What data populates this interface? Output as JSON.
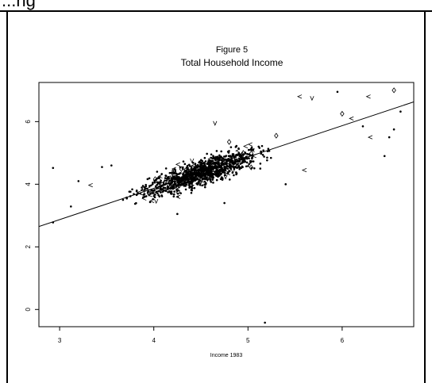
{
  "header_text": "...ng",
  "chart_data": {
    "type": "scatter",
    "title": "Figure 5",
    "subtitle": "Total Household Income",
    "xlabel": "Income 1983",
    "ylabel": "",
    "xlim": [
      2.78,
      6.76
    ],
    "ylim": [
      -0.55,
      7.25
    ],
    "x_ticks": [
      3,
      4,
      5,
      6
    ],
    "y_ticks": [
      0,
      2,
      4,
      6
    ],
    "regression_line": {
      "slope": 1.0,
      "intercept": -0.13
    },
    "marker_types": [
      "dot",
      "<",
      "v",
      "diamond"
    ],
    "cloud": {
      "x_center": 4.5,
      "x_spread": 0.55,
      "noise": 0.28,
      "n_points": 1100
    },
    "points": [
      {
        "x": 2.93,
        "y": 4.52,
        "m": "dot"
      },
      {
        "x": 2.93,
        "y": 2.78,
        "m": "dot"
      },
      {
        "x": 3.12,
        "y": 3.29,
        "m": "dot"
      },
      {
        "x": 3.2,
        "y": 4.1,
        "m": "dot"
      },
      {
        "x": 3.33,
        "y": 3.97,
        "m": "<"
      },
      {
        "x": 3.45,
        "y": 4.55,
        "m": "dot"
      },
      {
        "x": 3.55,
        "y": 4.6,
        "m": "dot"
      },
      {
        "x": 4.25,
        "y": 3.05,
        "m": "dot"
      },
      {
        "x": 4.75,
        "y": 3.4,
        "m": "dot"
      },
      {
        "x": 5.18,
        "y": -0.42,
        "m": "dot"
      },
      {
        "x": 5.55,
        "y": 6.8,
        "m": "<"
      },
      {
        "x": 5.68,
        "y": 6.75,
        "m": "v"
      },
      {
        "x": 5.95,
        "y": 6.95,
        "m": "dot"
      },
      {
        "x": 6.28,
        "y": 6.8,
        "m": "<"
      },
      {
        "x": 6.55,
        "y": 7.0,
        "m": "diamond"
      },
      {
        "x": 6.62,
        "y": 6.32,
        "m": "dot"
      },
      {
        "x": 6.5,
        "y": 5.5,
        "m": "dot"
      },
      {
        "x": 6.55,
        "y": 5.75,
        "m": "dot"
      },
      {
        "x": 6.45,
        "y": 4.9,
        "m": "dot"
      },
      {
        "x": 6.3,
        "y": 5.5,
        "m": "<"
      },
      {
        "x": 6.22,
        "y": 5.85,
        "m": "dot"
      },
      {
        "x": 4.65,
        "y": 5.95,
        "m": "v"
      },
      {
        "x": 4.95,
        "y": 5.0,
        "m": "diamond"
      },
      {
        "x": 4.8,
        "y": 5.35,
        "m": "diamond"
      },
      {
        "x": 5.3,
        "y": 5.55,
        "m": "diamond"
      },
      {
        "x": 3.95,
        "y": 3.7,
        "m": "diamond"
      },
      {
        "x": 6.0,
        "y": 6.25,
        "m": "diamond"
      },
      {
        "x": 6.1,
        "y": 6.1,
        "m": "<"
      },
      {
        "x": 5.6,
        "y": 4.45,
        "m": "<"
      },
      {
        "x": 5.4,
        "y": 4.0,
        "m": "dot"
      }
    ]
  }
}
